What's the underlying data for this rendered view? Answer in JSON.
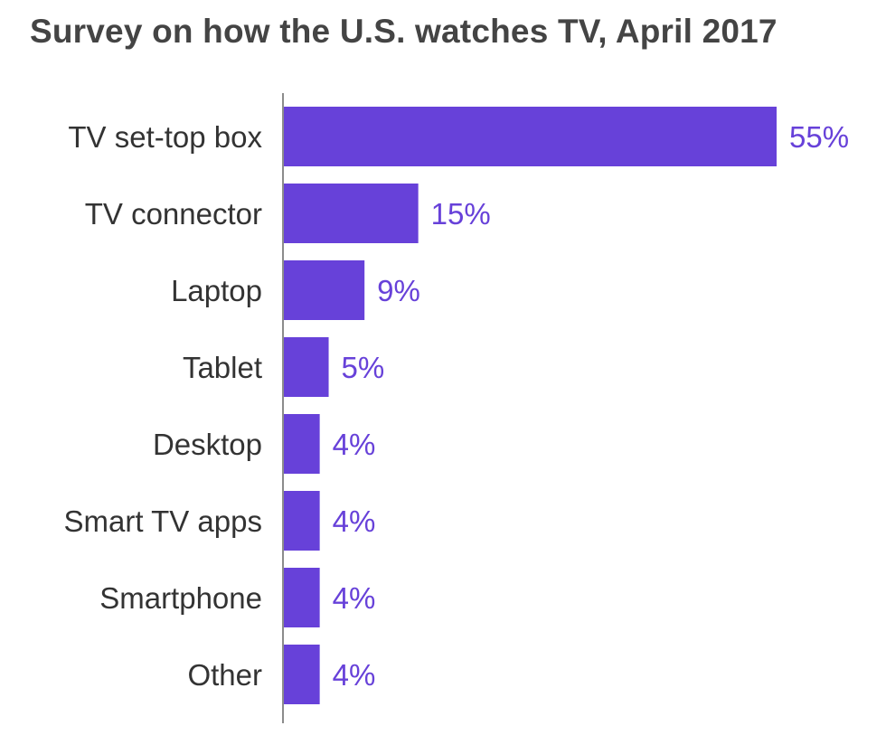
{
  "chart_data": {
    "type": "bar",
    "orientation": "horizontal",
    "title": "Survey on how the U.S. watches TV, April 2017",
    "categories": [
      "TV set-top box",
      "TV connector",
      "Laptop",
      "Tablet",
      "Desktop",
      "Smart TV apps",
      "Smartphone",
      "Other"
    ],
    "values": [
      55,
      15,
      9,
      5,
      4,
      4,
      4,
      4
    ],
    "value_labels": [
      "55%",
      "15%",
      "9%",
      "5%",
      "4%",
      "4%",
      "4%",
      "4%"
    ],
    "xlabel": "",
    "ylabel": "",
    "xlim": [
      0,
      55
    ],
    "grid": false,
    "bar_color": "#6741d9",
    "label_color": "#6741d9"
  }
}
